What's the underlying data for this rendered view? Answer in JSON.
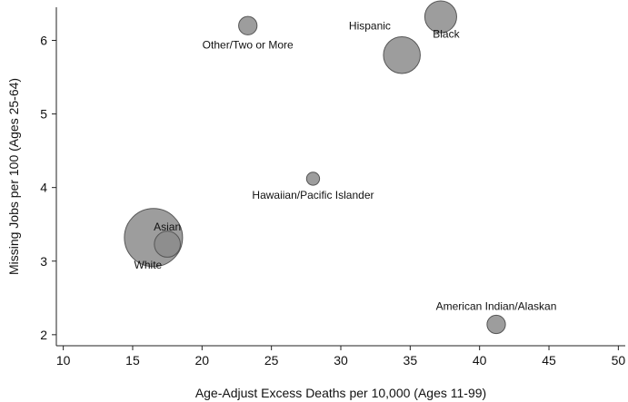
{
  "chart_data": {
    "type": "scatter",
    "title": "",
    "xlabel": "Age-Adjust Excess Deaths per 10,000 (Ages 11-99)",
    "ylabel": "Missing Jobs per 100 (Ages 25-64)",
    "xlim": [
      9.5,
      50.5
    ],
    "ylim": [
      1.85,
      6.45
    ],
    "xticks": [
      "10",
      "15",
      "20",
      "25",
      "30",
      "35",
      "40",
      "45",
      "50"
    ],
    "yticks": [
      "2",
      "3",
      "4",
      "5",
      "6"
    ],
    "grid": false,
    "bubble_fill": "#8c8c8c",
    "bubble_stroke": "#555555",
    "points": [
      {
        "label": "White",
        "x": 16.5,
        "y": 3.32,
        "size": 1.0,
        "label_pos": "below-left"
      },
      {
        "label": "Asian",
        "x": 17.5,
        "y": 3.23,
        "size": 0.2,
        "label_pos": "above"
      },
      {
        "label": "Other/Two or More",
        "x": 23.3,
        "y": 6.2,
        "size": 0.1,
        "label_pos": "below"
      },
      {
        "label": "Hawaiian/Pacific Islander",
        "x": 28.0,
        "y": 4.12,
        "size": 0.05,
        "label_pos": "below"
      },
      {
        "label": "Hispanic",
        "x": 34.4,
        "y": 5.8,
        "size": 0.4,
        "label_pos": "above-left"
      },
      {
        "label": "Black",
        "x": 37.2,
        "y": 6.32,
        "size": 0.3,
        "label_pos": "below"
      },
      {
        "label": "American Indian/Alaskan",
        "x": 41.2,
        "y": 2.14,
        "size": 0.1,
        "label_pos": "above"
      }
    ]
  }
}
